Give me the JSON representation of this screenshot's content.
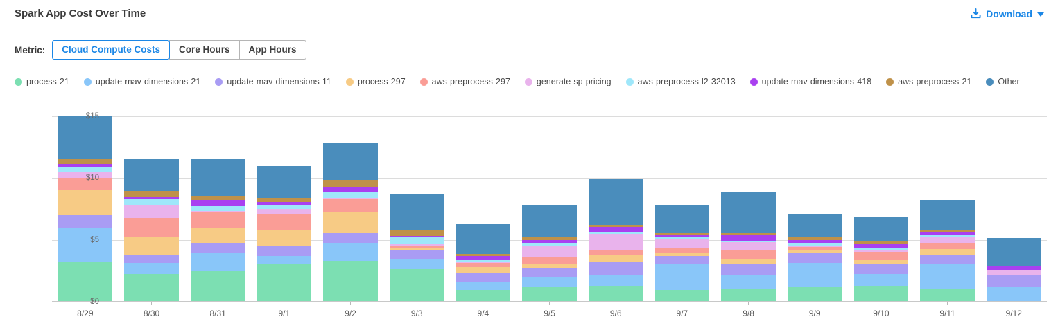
{
  "header": {
    "title": "Spark App Cost Over Time",
    "download_label": "Download"
  },
  "metric": {
    "label": "Metric:",
    "options": [
      {
        "label": "Cloud Compute Costs",
        "selected": true
      },
      {
        "label": "Core Hours",
        "selected": false
      },
      {
        "label": "App Hours",
        "selected": false
      }
    ]
  },
  "colors": {
    "accent": "#1b87e6",
    "grid": "#dcdcdc",
    "axis": "#c8c8c8"
  },
  "chart_data": {
    "type": "bar",
    "stacked": true,
    "title": "Spark App Cost Over Time",
    "xlabel": "",
    "ylabel": "Cloud Compute Costs ($)",
    "ylim": [
      0,
      15
    ],
    "y_ticks": [
      0,
      5,
      10,
      15
    ],
    "y_tick_labels": [
      "$0",
      "$5",
      "$10",
      "$15"
    ],
    "legend_position": "top",
    "grid": true,
    "categories": [
      "8/29",
      "8/30",
      "8/31",
      "9/1",
      "9/2",
      "9/3",
      "9/4",
      "9/5",
      "9/6",
      "9/7",
      "9/8",
      "9/9",
      "9/10",
      "9/11",
      "9/12"
    ],
    "series": [
      {
        "name": "process-21",
        "color": "#7cdfb2",
        "values": [
          3.13,
          2.2,
          2.39,
          2.95,
          3.23,
          2.57,
          0.9,
          1.12,
          1.18,
          0.9,
          0.93,
          1.12,
          1.18,
          0.93,
          0.0
        ]
      },
      {
        "name": "update-mav-dimensions-21",
        "color": "#89c6f9",
        "values": [
          2.74,
          0.9,
          1.45,
          0.71,
          1.49,
          0.78,
          0.6,
          0.86,
          0.93,
          2.14,
          1.18,
          1.98,
          1.03,
          2.11,
          1.12
        ]
      },
      {
        "name": "update-mav-dimensions-11",
        "color": "#a99cf4",
        "values": [
          1.07,
          0.63,
          0.88,
          0.82,
          0.75,
          0.8,
          0.75,
          0.69,
          1.03,
          0.62,
          0.93,
          0.75,
          0.78,
          0.65,
          1.03
        ]
      },
      {
        "name": "process-297",
        "color": "#f7cb85",
        "values": [
          2.0,
          1.45,
          1.18,
          1.3,
          1.73,
          0.15,
          0.47,
          0.32,
          0.56,
          0.19,
          0.32,
          0.22,
          0.34,
          0.52,
          0.0
        ]
      },
      {
        "name": "aws-preprocess-297",
        "color": "#fa9d96",
        "values": [
          1.03,
          1.53,
          1.3,
          1.3,
          1.06,
          0.2,
          0.34,
          0.56,
          0.41,
          0.41,
          0.71,
          0.32,
          0.65,
          0.5,
          0.0
        ]
      },
      {
        "name": "generate-sp-pricing",
        "color": "#e9b3ec",
        "values": [
          0.49,
          1.05,
          0.1,
          0.34,
          0.06,
          0.08,
          0.05,
          0.93,
          1.31,
          0.78,
          0.69,
          0.11,
          0.13,
          0.47,
          0.37
        ]
      },
      {
        "name": "aws-preprocess-l2-32013",
        "color": "#9fe7fa",
        "values": [
          0.41,
          0.47,
          0.4,
          0.37,
          0.49,
          0.55,
          0.17,
          0.24,
          0.19,
          0.19,
          0.13,
          0.22,
          0.21,
          0.22,
          0.0
        ]
      },
      {
        "name": "update-mav-dimensions-418",
        "color": "#a940f0",
        "values": [
          0.24,
          0.22,
          0.47,
          0.19,
          0.41,
          0.12,
          0.37,
          0.19,
          0.37,
          0.11,
          0.43,
          0.22,
          0.35,
          0.19,
          0.32
        ]
      },
      {
        "name": "aws-preprocess-21",
        "color": "#bf9149",
        "values": [
          0.34,
          0.43,
          0.34,
          0.34,
          0.56,
          0.45,
          0.15,
          0.22,
          0.19,
          0.19,
          0.19,
          0.24,
          0.15,
          0.19,
          0.0
        ]
      },
      {
        "name": "Other",
        "color": "#4a8dbc",
        "values": [
          3.55,
          2.62,
          2.99,
          2.58,
          3.02,
          3.0,
          2.4,
          2.63,
          3.75,
          2.24,
          3.29,
          1.86,
          2.01,
          2.39,
          2.24
        ]
      }
    ]
  }
}
